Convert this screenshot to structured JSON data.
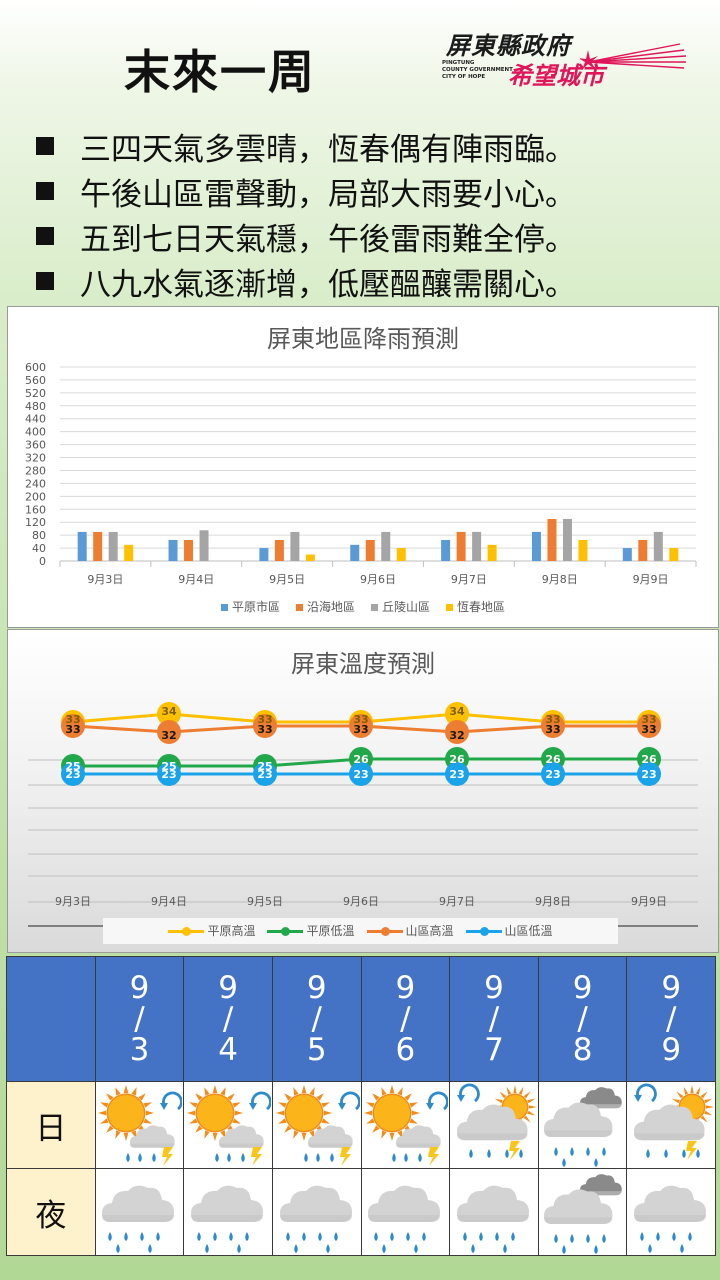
{
  "title": "末來一周",
  "logo": {
    "name": "屏東縣政府",
    "english": [
      "PINGTUNG",
      "COUNTY GOVERNMENT",
      "CITY OF HOPE"
    ],
    "slogan": "希望城市"
  },
  "bullets": [
    "三四天氣多雲晴，恆春偶有陣雨臨。",
    "午後山區雷聲動，局部大雨要小心。",
    "五到七日天氣穩，午後雷雨難全停。",
    "八九水氣逐漸增，低壓醞釀需關心。"
  ],
  "colors": {
    "blue": "#5b9bd5",
    "orange": "#ed7d31",
    "gray": "#a5a5a5",
    "yellow": "#ffc000",
    "green": "#21a84a",
    "cyan": "#1aa3e8",
    "header": "#4472c4",
    "label_bg": "#fef2cc"
  },
  "chart_data": [
    {
      "type": "bar",
      "title": "屏東地區降雨預測",
      "categories": [
        "9月3日",
        "9月4日",
        "9月5日",
        "9月6日",
        "9月7日",
        "9月8日",
        "9月9日"
      ],
      "series": [
        {
          "name": "平原市區",
          "values": [
            90,
            65,
            40,
            50,
            65,
            90,
            40
          ]
        },
        {
          "name": "沿海地區",
          "values": [
            90,
            65,
            65,
            65,
            90,
            130,
            65
          ]
        },
        {
          "name": "丘陵山區",
          "values": [
            90,
            95,
            90,
            90,
            90,
            130,
            90
          ]
        },
        {
          "name": "恆春地區",
          "values": [
            50,
            0,
            20,
            40,
            50,
            65,
            40
          ]
        }
      ],
      "ylim": [
        0,
        600
      ],
      "yticks": [
        0,
        40,
        80,
        120,
        160,
        200,
        240,
        280,
        320,
        360,
        400,
        440,
        480,
        520,
        560,
        600
      ],
      "grid": true,
      "legend": "bottom"
    },
    {
      "type": "line",
      "title": "屏東溫度預測",
      "categories": [
        "9月3日",
        "9月4日",
        "9月5日",
        "9月6日",
        "9月7日",
        "9月8日",
        "9月9日"
      ],
      "series": [
        {
          "name": "平原高溫",
          "values": [
            33,
            34,
            33,
            33,
            34,
            33,
            33
          ]
        },
        {
          "name": "平原低溫",
          "values": [
            25,
            25,
            25,
            26,
            26,
            26,
            26
          ]
        },
        {
          "name": "山區高溫",
          "values": [
            33,
            32,
            33,
            33,
            32,
            33,
            33
          ]
        },
        {
          "name": "山區低溫",
          "values": [
            23,
            23,
            23,
            23,
            23,
            23,
            23
          ]
        }
      ],
      "grid": true,
      "legend": "bottom"
    }
  ],
  "forecast": {
    "dates": [
      "9\n/\n3",
      "9\n/\n4",
      "9\n/\n5",
      "9\n/\n6",
      "9\n/\n7",
      "9\n/\n8",
      "9\n/\n9"
    ],
    "day_label": "日",
    "night_label": "夜",
    "day_icons": [
      "sun-cloud-rain-thunder-icon",
      "sun-cloud-rain-thunder-icon",
      "sun-cloud-rain-thunder-icon",
      "sun-cloud-rain-thunder-icon",
      "cloud-sun-rain-thunder-icon",
      "cloud-rain-icon",
      "cloud-sun-rain-thunder-icon"
    ],
    "night_icons": [
      "cloud-rain-icon",
      "cloud-rain-icon",
      "cloud-rain-icon",
      "cloud-rain-icon",
      "cloud-rain-icon",
      "cloud-rain-icon",
      "cloud-rain-icon"
    ]
  }
}
